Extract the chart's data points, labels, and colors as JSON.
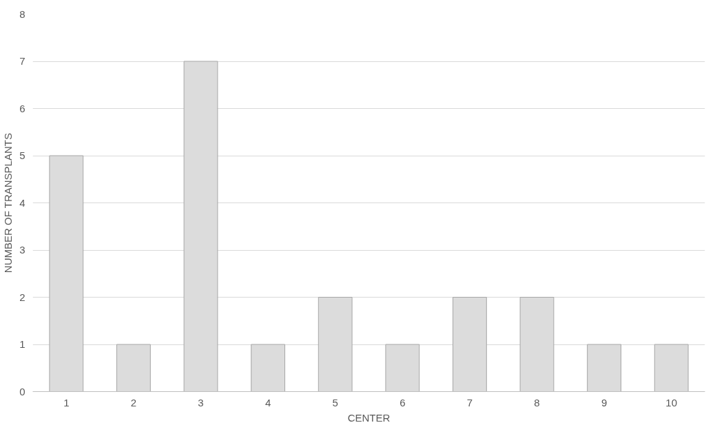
{
  "chart_data": {
    "type": "bar",
    "xlabel": "CENTER",
    "ylabel": "NUMBER OF TRANSPLANTS",
    "categories": [
      "1",
      "2",
      "3",
      "4",
      "5",
      "6",
      "7",
      "8",
      "9",
      "10"
    ],
    "values": [
      5,
      1,
      7,
      1,
      2,
      1,
      2,
      2,
      1,
      1
    ],
    "color": "#dcdcdc",
    "ylim": [
      0,
      8
    ],
    "yticks": [
      0,
      1,
      2,
      3,
      4,
      5,
      6,
      7,
      8
    ],
    "grid": "y"
  }
}
